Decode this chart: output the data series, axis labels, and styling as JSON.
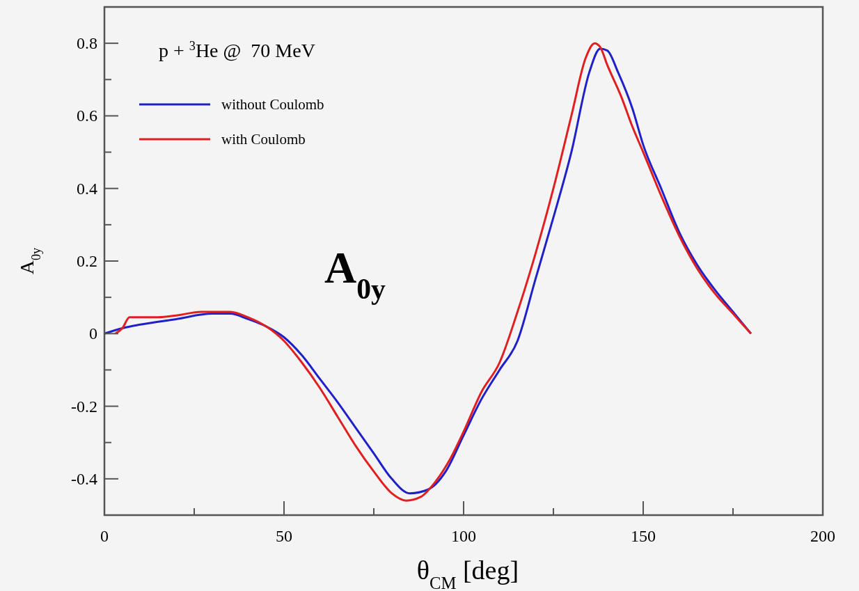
{
  "chart_data": {
    "type": "line",
    "xlabel": "θ$_{CM}$ [deg]",
    "ylabel": "A$_{0y}$",
    "annotations": [
      "p + $^{3}$He @  70 MeV",
      "A$_{0y}$"
    ],
    "xlim": [
      0,
      200
    ],
    "xticks": [
      0,
      50,
      100,
      150,
      200
    ],
    "ylim": [
      -0.5,
      0.9
    ],
    "yticks": [
      -0.4,
      -0.2,
      0,
      0.2,
      0.4,
      0.6,
      0.8
    ],
    "legend": "top left",
    "grid": false,
    "line_style": "solid",
    "series": [
      {
        "name": "without Coulomb",
        "color": "#2020c8",
        "x": [
          0,
          5,
          10,
          20,
          30,
          35,
          40,
          45,
          50,
          55,
          60,
          65,
          70,
          75,
          80,
          85,
          90,
          95,
          100,
          105,
          110,
          115,
          120,
          125,
          130,
          135,
          138,
          140,
          143,
          147,
          150,
          155,
          160,
          165,
          170,
          175,
          180
        ],
        "values": [
          0,
          0.015,
          0.025,
          0.04,
          0.055,
          0.055,
          0.04,
          0.02,
          -0.01,
          -0.06,
          -0.125,
          -0.19,
          -0.26,
          -0.33,
          -0.4,
          -0.44,
          -0.43,
          -0.38,
          -0.28,
          -0.18,
          -0.1,
          -0.02,
          0.15,
          0.32,
          0.5,
          0.72,
          0.785,
          0.78,
          0.72,
          0.62,
          0.52,
          0.4,
          0.28,
          0.19,
          0.12,
          0.06,
          0
        ]
      },
      {
        "name": "with Coulomb",
        "color": "#e02020",
        "x": [
          3,
          5,
          7,
          15,
          20,
          27,
          35,
          40,
          45,
          50,
          55,
          60,
          65,
          70,
          75,
          80,
          84,
          88,
          92,
          96,
          100,
          105,
          110,
          115,
          120,
          125,
          130,
          134,
          136.5,
          138,
          140,
          144,
          147,
          150,
          155,
          160,
          165,
          170,
          175,
          180
        ],
        "values": [
          0,
          0.015,
          0.045,
          0.045,
          0.05,
          0.06,
          0.06,
          0.045,
          0.02,
          -0.02,
          -0.08,
          -0.15,
          -0.23,
          -0.31,
          -0.38,
          -0.44,
          -0.46,
          -0.45,
          -0.41,
          -0.35,
          -0.27,
          -0.16,
          -0.08,
          0.06,
          0.22,
          0.4,
          0.6,
          0.76,
          0.8,
          0.79,
          0.74,
          0.65,
          0.57,
          0.5,
          0.38,
          0.27,
          0.18,
          0.11,
          0.055,
          0
        ]
      }
    ]
  }
}
